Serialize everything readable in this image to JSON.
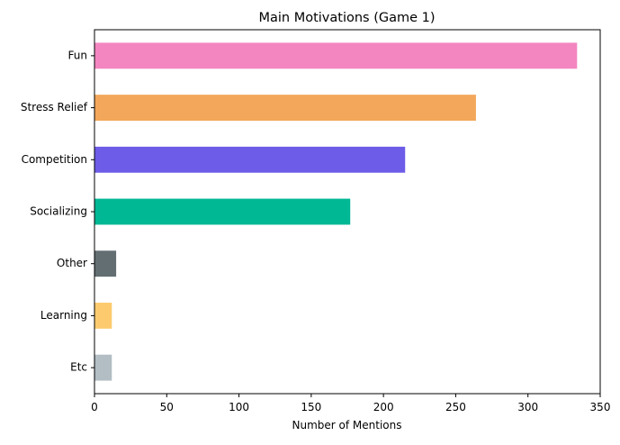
{
  "chart_data": {
    "type": "bar",
    "orientation": "horizontal",
    "title": "Main Motivations (Game 1)",
    "xlabel": "Number of Mentions",
    "ylabel": "",
    "categories": [
      "Fun",
      "Stress Relief",
      "Competition",
      "Socializing",
      "Other",
      "Learning",
      "Etc"
    ],
    "values": [
      334,
      264,
      215,
      177,
      15,
      12,
      12
    ],
    "colors": [
      "#f386c1",
      "#f2a75a",
      "#6c5ce7",
      "#00b894",
      "#636e72",
      "#fdcb6e",
      "#b2bec3"
    ],
    "xlim": [
      0,
      350
    ],
    "xticks": [
      0,
      50,
      100,
      150,
      200,
      250,
      300,
      350
    ],
    "grid": false,
    "legend": "none"
  }
}
